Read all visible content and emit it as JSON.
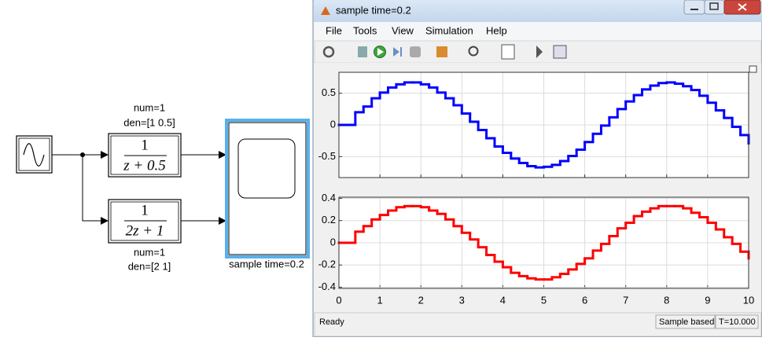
{
  "diagram": {
    "blocks": [
      {
        "num_label": "num=1",
        "den_label": "den=[1 0.5]",
        "numerator": "1",
        "denominator": "z + 0.5"
      },
      {
        "num_label": "num=1",
        "den_label": "den=[2 1]",
        "numerator": "1",
        "denominator": "2z + 1"
      }
    ],
    "scope_label": "sample time=0.2"
  },
  "window": {
    "title": "sample time=0.2",
    "menu": [
      "File",
      "Tools",
      "View",
      "Simulation",
      "Help"
    ]
  },
  "status": {
    "state": "Ready",
    "mode": "Sample based",
    "time": "T=10.000"
  },
  "chart_data": [
    {
      "type": "line",
      "color": "#0000ff",
      "x": [
        0,
        0.2,
        0.4,
        0.6,
        0.8,
        1,
        1.2,
        1.4,
        1.6,
        1.8,
        2,
        2.2,
        2.4,
        2.6,
        2.8,
        3,
        3.2,
        3.4,
        3.6,
        3.8,
        4,
        4.2,
        4.4,
        4.6,
        4.8,
        5,
        5.2,
        5.4,
        5.6,
        5.8,
        6,
        6.2,
        6.4,
        6.6,
        6.8,
        7,
        7.2,
        7.4,
        7.6,
        7.8,
        8,
        8.2,
        8.4,
        8.6,
        8.8,
        9,
        9.2,
        9.4,
        9.6,
        9.8,
        10
      ],
      "values": [
        0,
        0,
        0.2,
        0.29,
        0.42,
        0.51,
        0.59,
        0.64,
        0.67,
        0.67,
        0.64,
        0.59,
        0.51,
        0.42,
        0.31,
        0.18,
        0.05,
        -0.08,
        -0.21,
        -0.34,
        -0.44,
        -0.53,
        -0.6,
        -0.65,
        -0.67,
        -0.66,
        -0.63,
        -0.57,
        -0.49,
        -0.39,
        -0.27,
        -0.14,
        -0.01,
        0.12,
        0.25,
        0.37,
        0.47,
        0.56,
        0.62,
        0.66,
        0.67,
        0.65,
        0.61,
        0.55,
        0.46,
        0.35,
        0.23,
        0.11,
        -0.03,
        -0.16,
        -0.29
      ],
      "xlim": [
        0,
        10
      ],
      "xticks": [
        0,
        1,
        2,
        3,
        4,
        5,
        6,
        7,
        8,
        9,
        10
      ],
      "ylim": [
        -0.83,
        0.83
      ],
      "yticks": [
        0.5,
        0,
        -0.5
      ],
      "grid": true
    },
    {
      "type": "line",
      "color": "#ff0000",
      "x": [
        0,
        0.2,
        0.4,
        0.6,
        0.8,
        1,
        1.2,
        1.4,
        1.6,
        1.8,
        2,
        2.2,
        2.4,
        2.6,
        2.8,
        3,
        3.2,
        3.4,
        3.6,
        3.8,
        4,
        4.2,
        4.4,
        4.6,
        4.8,
        5,
        5.2,
        5.4,
        5.6,
        5.8,
        6,
        6.2,
        6.4,
        6.6,
        6.8,
        7,
        7.2,
        7.4,
        7.6,
        7.8,
        8,
        8.2,
        8.4,
        8.6,
        8.8,
        9,
        9.2,
        9.4,
        9.6,
        9.8,
        10
      ],
      "values": [
        0,
        0,
        0.1,
        0.15,
        0.21,
        0.25,
        0.29,
        0.32,
        0.33,
        0.33,
        0.32,
        0.29,
        0.26,
        0.21,
        0.15,
        0.09,
        0.03,
        -0.04,
        -0.11,
        -0.17,
        -0.22,
        -0.27,
        -0.3,
        -0.32,
        -0.33,
        -0.33,
        -0.31,
        -0.28,
        -0.24,
        -0.19,
        -0.14,
        -0.07,
        -0.01,
        0.06,
        0.13,
        0.18,
        0.24,
        0.28,
        0.31,
        0.33,
        0.33,
        0.33,
        0.31,
        0.27,
        0.23,
        0.18,
        0.12,
        0.05,
        -0.01,
        -0.08,
        -0.14
      ],
      "xlim": [
        0,
        10
      ],
      "xticks": [
        0,
        1,
        2,
        3,
        4,
        5,
        6,
        7,
        8,
        9,
        10
      ],
      "ylim": [
        -0.41,
        0.41
      ],
      "yticks": [
        0.4,
        0.2,
        0,
        -0.2,
        -0.4
      ],
      "grid": true
    }
  ]
}
